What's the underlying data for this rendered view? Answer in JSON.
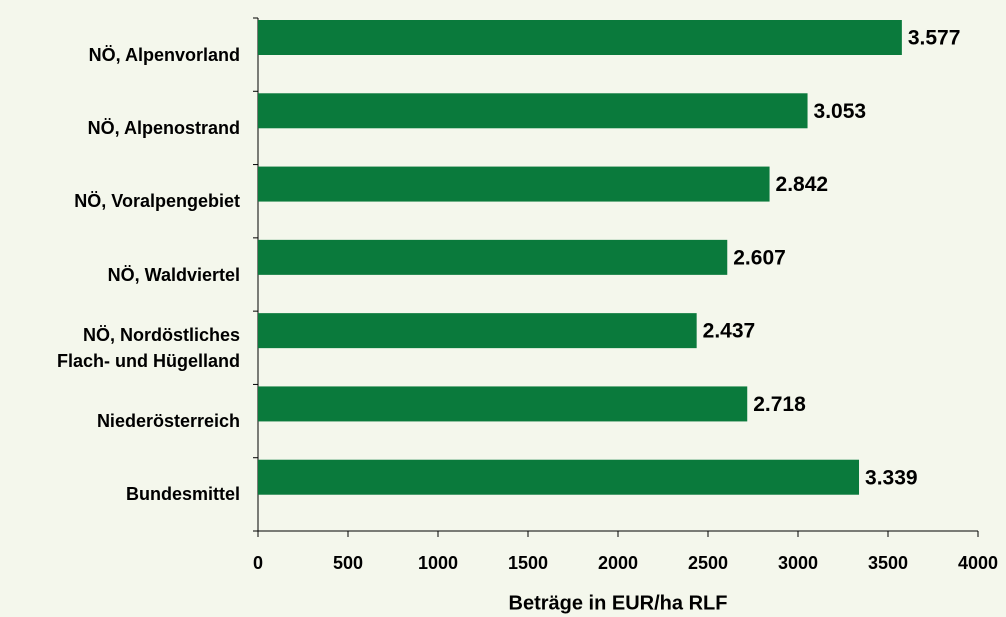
{
  "chart_data": {
    "type": "bar",
    "orientation": "horizontal",
    "xlabel": "Beträge in EUR/ha RLF",
    "categories": [
      "NÖ, Alpenvorland",
      "NÖ, Alpenostrand",
      "NÖ, Voralpengebiet",
      "NÖ, Waldviertel",
      "NÖ, Nordöstliches\nFlach- und Hügelland",
      "Niederösterreich",
      "Bundesmittel"
    ],
    "values": [
      3577,
      3053,
      2842,
      2607,
      2437,
      2718,
      3339
    ],
    "value_labels": [
      "3.577",
      "3.053",
      "2.842",
      "2.607",
      "2.437",
      "2.718",
      "3.339"
    ],
    "color": "#0a7a3c",
    "xlim": [
      0,
      4000
    ],
    "xticks": [
      0,
      500,
      1000,
      1500,
      2000,
      2500,
      3000,
      3500,
      4000
    ],
    "grid": false
  }
}
